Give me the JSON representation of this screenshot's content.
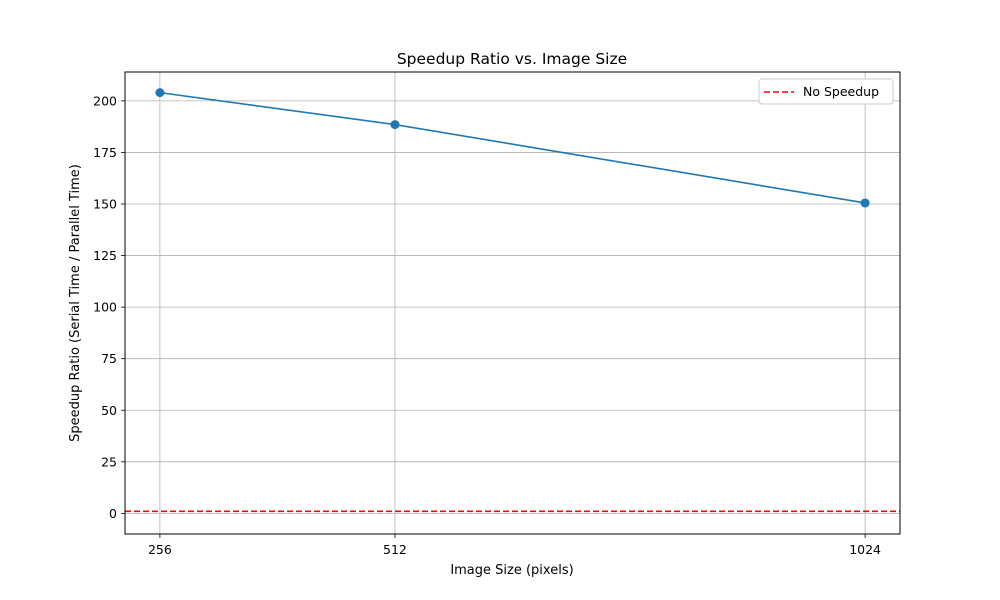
{
  "chart_data": {
    "type": "line",
    "title": "Speedup Ratio vs. Image Size",
    "xlabel": "Image Size (pixels)",
    "ylabel": "Speedup Ratio (Serial Time / Parallel Time)",
    "x": [
      256,
      512,
      1024
    ],
    "x_tick_labels": [
      "256",
      "512",
      "1024"
    ],
    "xlim": [
      218,
      1062
    ],
    "ylim": [
      -10,
      214
    ],
    "y_ticks": [
      0,
      25,
      50,
      75,
      100,
      125,
      150,
      175,
      200
    ],
    "grid": true,
    "legend_position": "top-right",
    "series": [
      {
        "values": [
          204.0,
          188.5,
          150.5
        ],
        "color": "#1f77b4",
        "marker": "circle",
        "line_style": "solid"
      }
    ],
    "reference_lines": [
      {
        "name": "No Speedup",
        "y": 1,
        "color": "#ff0000",
        "line_style": "dashed"
      }
    ]
  }
}
